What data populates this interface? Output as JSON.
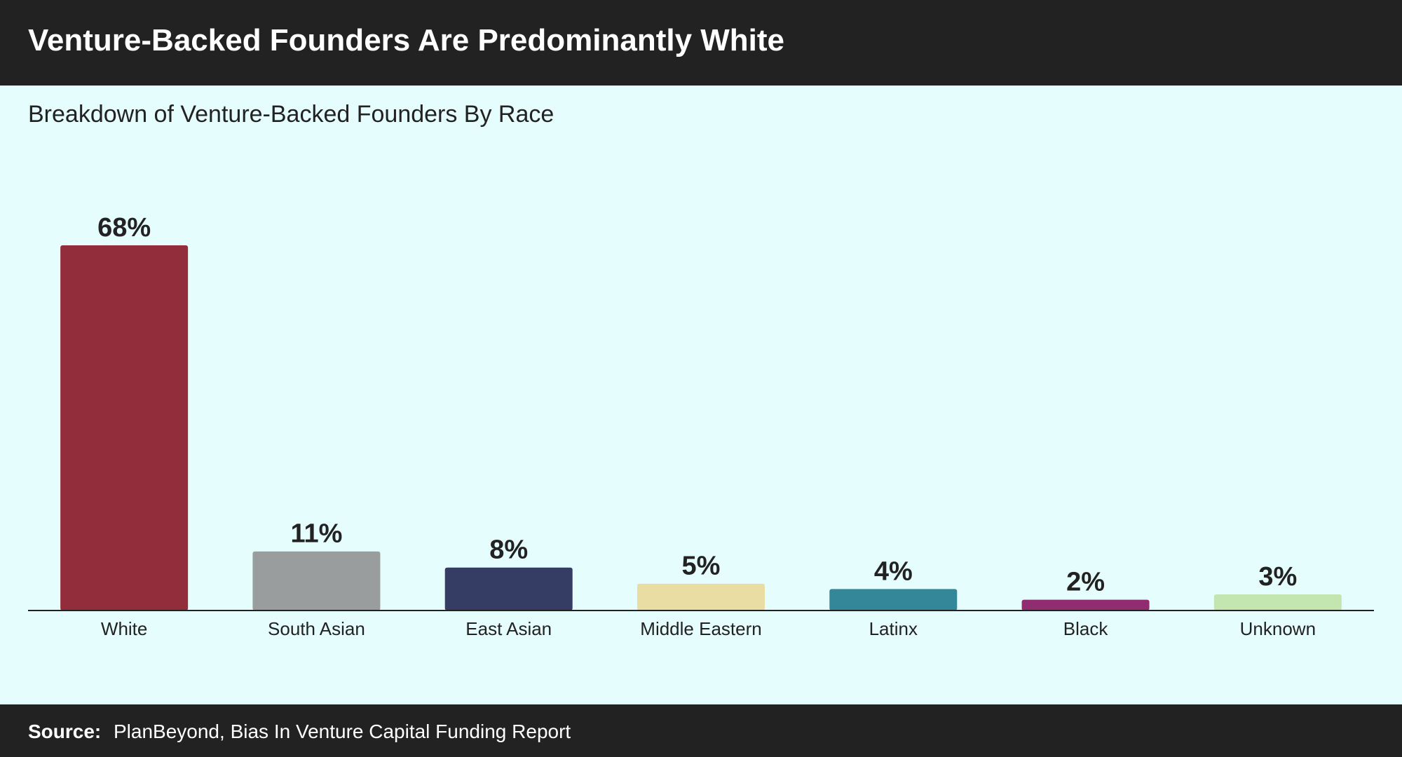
{
  "title": "Venture-Backed Founders Are Predominantly White",
  "subtitle": "Breakdown of Venture-Backed Founders By Race",
  "source": {
    "label": "Source:",
    "text": "PlanBeyond, Bias In Venture Capital Funding Report"
  },
  "chart_data": {
    "type": "bar",
    "title": "Venture-Backed Founders Are Predominantly White",
    "subtitle": "Breakdown of Venture-Backed Founders By Race",
    "xlabel": "",
    "ylabel": "",
    "categories": [
      "White",
      "South Asian",
      "East Asian",
      "Middle Eastern",
      "Latinx",
      "Black",
      "Unknown"
    ],
    "values": [
      68,
      11,
      8,
      5,
      4,
      2,
      3
    ],
    "data_labels": [
      "68%",
      "11%",
      "8%",
      "5%",
      "4%",
      "2%",
      "3%"
    ],
    "unit": "%",
    "colors": [
      "#922d3c",
      "#999d9d",
      "#353d64",
      "#eadda3",
      "#338798",
      "#922c70",
      "#c3e6b0"
    ],
    "ylim": [
      0,
      68
    ],
    "grid": false,
    "legend": "none"
  },
  "colors": {
    "background": "#e6fdfe",
    "header": "#222222",
    "footer": "#222222",
    "text_dark": "#222222",
    "text_light": "#ffffff",
    "axis": "#222222"
  }
}
